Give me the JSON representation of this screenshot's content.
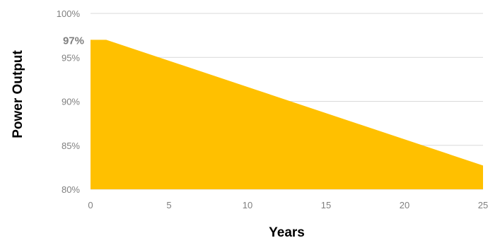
{
  "chart_data": {
    "type": "area",
    "title": "",
    "xlabel": "Years",
    "ylabel": "Power Output",
    "x": [
      0,
      1,
      25
    ],
    "y": [
      97,
      97,
      82.7
    ],
    "xlim": [
      0,
      25
    ],
    "ylim": [
      80,
      100
    ],
    "x_ticks": [
      0,
      5,
      10,
      15,
      20,
      25
    ],
    "x_tick_labels": [
      "0",
      "5",
      "10",
      "15",
      "20",
      "25"
    ],
    "y_ticks": [
      80,
      85,
      90,
      95,
      100
    ],
    "y_tick_labels": [
      "80%",
      "85%",
      "90%",
      "95%",
      "100%"
    ],
    "annotations": [
      {
        "text": "97%",
        "y": 97
      }
    ],
    "grid": true,
    "fill_color": "#FFC000",
    "grid_color": "#d9d9d9"
  }
}
